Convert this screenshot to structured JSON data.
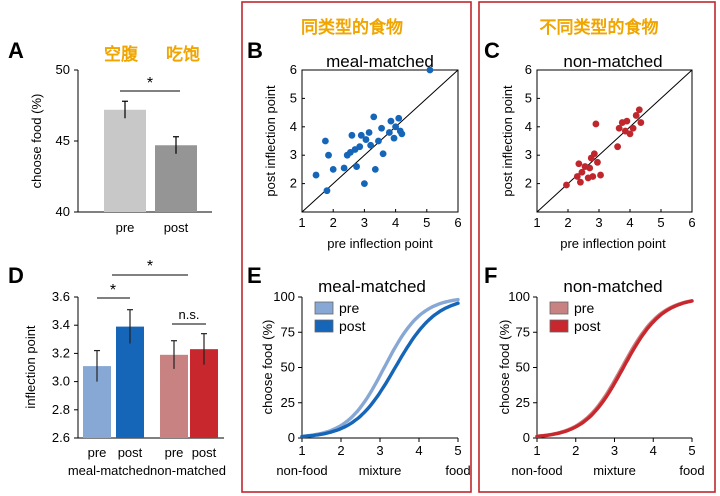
{
  "colors": {
    "frame": "#c0272d",
    "chinese_title": "#f0a500",
    "diagonal": "#000000",
    "blue_points": "#1565b8",
    "red_points": "#c0272d",
    "bar_pre_a": "#c8c8c8",
    "bar_post_a": "#959595",
    "bar_pre_meal": "#87a8d4",
    "bar_post_meal": "#1565b8",
    "bar_pre_non": "#c88282",
    "bar_post_non": "#c8282d",
    "curve_pre_meal": "#87a8d4",
    "curve_post_meal": "#1565b8",
    "curve_pre_non": "#c88282",
    "curve_post_non": "#c8282d"
  },
  "headers": {
    "matched_cn": "同类型的食物",
    "nonmatched_cn": "不同类型的食物"
  },
  "chart_data": [
    {
      "panel": "A",
      "type": "bar",
      "title_left": "空腹",
      "title_right": "吃饱",
      "ylabel": "choose food (%)",
      "categories": [
        "pre",
        "post"
      ],
      "values": [
        47.2,
        44.7
      ],
      "errors": [
        0.6,
        0.6
      ],
      "ylim": [
        40,
        50
      ],
      "yticks": [
        "40",
        "45",
        "50"
      ],
      "significance": [
        {
          "between": [
            0,
            1
          ],
          "label": "*"
        }
      ]
    },
    {
      "panel": "B",
      "type": "scatter",
      "title": "meal-matched",
      "xlabel": "pre inflection point",
      "ylabel": "post inflection point",
      "xlim": [
        1,
        6
      ],
      "ylim": [
        1,
        6
      ],
      "xticks": [
        "1",
        "2",
        "3",
        "4",
        "5",
        "6"
      ],
      "yticks": [
        "2",
        "3",
        "4",
        "5",
        "6"
      ],
      "identity_line": true,
      "points": [
        [
          1.45,
          2.3
        ],
        [
          1.8,
          1.75
        ],
        [
          1.75,
          3.5
        ],
        [
          1.85,
          3.0
        ],
        [
          2.0,
          2.5
        ],
        [
          2.35,
          2.55
        ],
        [
          2.45,
          3.0
        ],
        [
          2.55,
          3.1
        ],
        [
          2.6,
          3.7
        ],
        [
          2.7,
          3.2
        ],
        [
          2.75,
          2.6
        ],
        [
          2.85,
          3.3
        ],
        [
          2.9,
          3.7
        ],
        [
          3.0,
          2.0
        ],
        [
          3.05,
          3.55
        ],
        [
          3.15,
          3.8
        ],
        [
          3.2,
          3.35
        ],
        [
          3.3,
          4.35
        ],
        [
          3.35,
          2.5
        ],
        [
          3.45,
          3.5
        ],
        [
          3.55,
          3.95
        ],
        [
          3.6,
          3.05
        ],
        [
          3.8,
          3.8
        ],
        [
          3.85,
          4.2
        ],
        [
          3.95,
          3.6
        ],
        [
          4.0,
          4.0
        ],
        [
          4.1,
          4.3
        ],
        [
          4.15,
          3.85
        ],
        [
          4.2,
          3.75
        ],
        [
          5.1,
          6.0
        ]
      ]
    },
    {
      "panel": "C",
      "type": "scatter",
      "title": "non-matched",
      "xlabel": "pre inflection point",
      "ylabel": "post inflection point",
      "xlim": [
        1,
        6
      ],
      "ylim": [
        1,
        6
      ],
      "xticks": [
        "1",
        "2",
        "3",
        "4",
        "5",
        "6"
      ],
      "yticks": [
        "2",
        "3",
        "4",
        "5",
        "6"
      ],
      "identity_line": true,
      "points": [
        [
          1.95,
          1.95
        ],
        [
          2.3,
          2.25
        ],
        [
          2.35,
          2.7
        ],
        [
          2.4,
          2.05
        ],
        [
          2.45,
          2.4
        ],
        [
          2.55,
          2.6
        ],
        [
          2.65,
          2.2
        ],
        [
          2.7,
          2.55
        ],
        [
          2.75,
          2.9
        ],
        [
          2.8,
          2.25
        ],
        [
          2.85,
          3.05
        ],
        [
          2.9,
          4.1
        ],
        [
          2.95,
          2.75
        ],
        [
          3.05,
          2.3
        ],
        [
          3.6,
          3.3
        ],
        [
          3.65,
          3.95
        ],
        [
          3.75,
          4.15
        ],
        [
          3.85,
          3.85
        ],
        [
          3.9,
          4.2
        ],
        [
          4.0,
          3.75
        ],
        [
          4.1,
          3.95
        ],
        [
          4.2,
          4.4
        ],
        [
          4.3,
          4.6
        ],
        [
          4.35,
          4.15
        ]
      ]
    },
    {
      "panel": "D",
      "type": "bar",
      "ylabel": "inflection point",
      "ylim": [
        2.6,
        3.6
      ],
      "yticks": [
        "2.6",
        "2.8",
        "3.0",
        "3.2",
        "3.4",
        "3.6"
      ],
      "groups": [
        {
          "label": "meal-matched",
          "categories": [
            "pre",
            "post"
          ],
          "values": [
            3.11,
            3.39
          ],
          "errors": [
            0.11,
            0.12
          ]
        },
        {
          "label": "non-matched",
          "categories": [
            "pre",
            "post"
          ],
          "values": [
            3.19,
            3.23
          ],
          "errors": [
            0.1,
            0.11
          ]
        }
      ],
      "significance": [
        {
          "between": [
            "meal-pre",
            "meal-post"
          ],
          "label": "*"
        },
        {
          "between": [
            "meal-pre",
            "non-pre"
          ],
          "label": "*"
        },
        {
          "between": [
            "non-pre",
            "non-post"
          ],
          "label": "n.s."
        }
      ]
    },
    {
      "panel": "E",
      "type": "line",
      "title": "meal-matched",
      "ylabel": "choose food (%)",
      "xlim": [
        1,
        5
      ],
      "ylim": [
        0,
        100
      ],
      "xticks": [
        "1",
        "2",
        "3",
        "4",
        "5"
      ],
      "yticks": [
        "0",
        "25",
        "50",
        "75",
        "100"
      ],
      "xtick_words": [
        "non-food",
        "mixture",
        "food"
      ],
      "series": [
        {
          "name": "pre",
          "inflection": 3.11,
          "slope": 2.1
        },
        {
          "name": "post",
          "inflection": 3.39,
          "slope": 1.9
        }
      ]
    },
    {
      "panel": "F",
      "type": "line",
      "title": "non-matched",
      "ylabel": "choose food (%)",
      "xlim": [
        1,
        5
      ],
      "ylim": [
        0,
        100
      ],
      "xticks": [
        "1",
        "2",
        "3",
        "4",
        "5"
      ],
      "yticks": [
        "0",
        "25",
        "50",
        "75",
        "100"
      ],
      "xtick_words": [
        "non-food",
        "mixture",
        "food"
      ],
      "series": [
        {
          "name": "pre",
          "inflection": 3.19,
          "slope": 2.0
        },
        {
          "name": "post",
          "inflection": 3.23,
          "slope": 2.0
        }
      ]
    }
  ]
}
